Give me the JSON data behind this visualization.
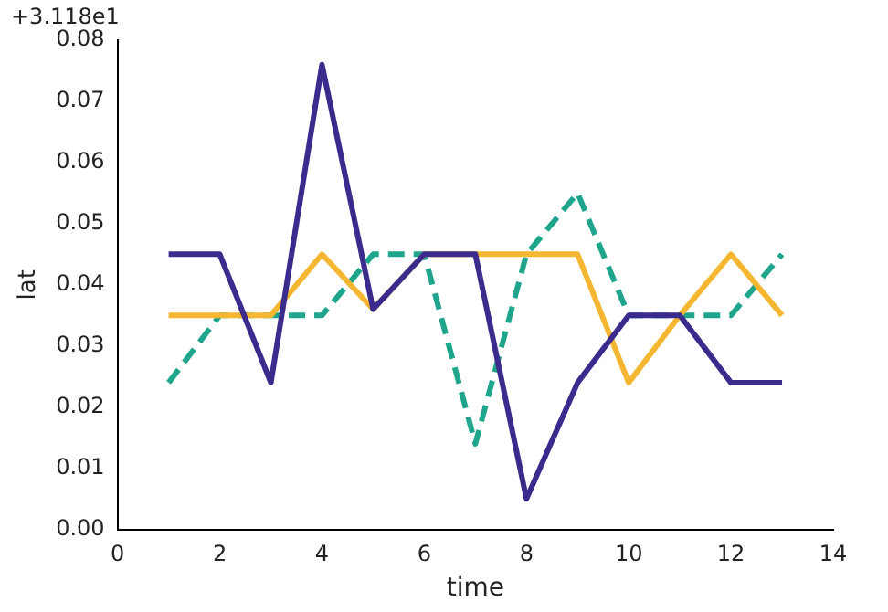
{
  "chart_data": {
    "type": "line",
    "xlabel": "time",
    "ylabel": "lat",
    "annotations": [
      "+3.118e1"
    ],
    "x": [
      1,
      2,
      3,
      4,
      5,
      6,
      7,
      8,
      9,
      10,
      11,
      12,
      13
    ],
    "series": [
      {
        "color": "#3b2b8c",
        "line_style": "solid",
        "values": [
          0.045,
          0.045,
          0.024,
          0.076,
          0.036,
          0.045,
          0.045,
          0.005,
          0.024,
          0.035,
          0.035,
          0.024,
          0.024
        ]
      },
      {
        "color": "#f5b731",
        "line_style": "solid",
        "values": [
          0.035,
          0.035,
          0.035,
          0.045,
          0.036,
          0.045,
          0.045,
          0.045,
          0.045,
          0.024,
          0.035,
          0.045,
          0.035
        ]
      },
      {
        "color": "#1fa58c",
        "line_style": "dashed",
        "values": [
          0.024,
          0.035,
          0.035,
          0.035,
          0.045,
          0.045,
          0.014,
          0.045,
          0.055,
          0.035,
          0.035,
          0.035,
          0.045
        ]
      }
    ],
    "xlim": [
      0,
      14
    ],
    "xticks": [
      0,
      2,
      4,
      6,
      8,
      10,
      12,
      14
    ],
    "ylim": [
      0,
      0.08
    ],
    "yticks": [
      {
        "value": 0,
        "label": "0.00"
      },
      {
        "value": 0.01,
        "label": "0.01"
      },
      {
        "value": 0.02,
        "label": "0.02"
      },
      {
        "value": 0.03,
        "label": "0.03"
      },
      {
        "value": 0.04,
        "label": "0.04"
      },
      {
        "value": 0.05,
        "label": "0.05"
      },
      {
        "value": 0.06,
        "label": "0.06"
      },
      {
        "value": 0.07,
        "label": "0.07"
      },
      {
        "value": 0.08,
        "label": "0.08"
      }
    ],
    "grid": false,
    "legend": false,
    "marker": "none"
  }
}
